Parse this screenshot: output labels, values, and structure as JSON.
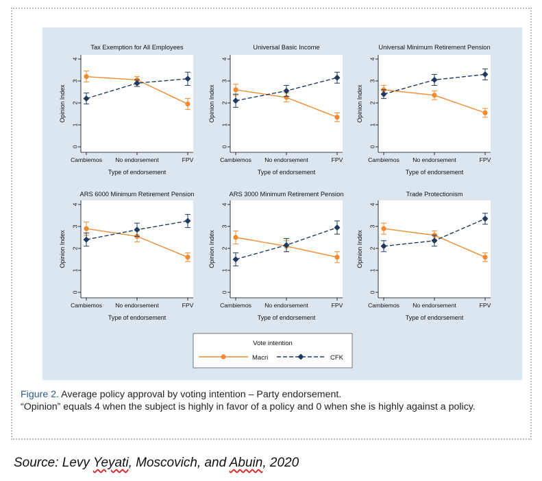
{
  "figure": {
    "caption_label": "Figure 2.",
    "caption_text": "Average policy approval by voting intention – Party endorsement.",
    "caption_note": "“Opinion” equals 4 when the subject is highly in favor of a policy and 0 when she is highly against a policy.",
    "source_prefix": "Source: Levy ",
    "source_author1": "Yeyati",
    "source_mid": ", Moscovich, and ",
    "source_author3": "Abuin",
    "source_suffix": ", 2020"
  },
  "legend": {
    "title": "Vote intention",
    "series": [
      {
        "name": "Macri",
        "color": "#f08a30"
      },
      {
        "name": "CFK",
        "color": "#1f3a5f"
      }
    ]
  },
  "colors": {
    "macri": "#f08a30",
    "cfk": "#1f3a5f",
    "panel_bg": "#dce6ee",
    "plot_bg": "#ffffff"
  },
  "chart_data": [
    {
      "type": "line",
      "title": "Tax Exemption for All Employees",
      "categories": [
        "Cambiemos",
        "No endorsement",
        "FPV"
      ],
      "xlabel": "Type of endorsement",
      "ylabel": "Opinion Index",
      "ylim": [
        0,
        4
      ],
      "yticks": [
        0,
        1,
        2,
        3,
        4
      ],
      "series": [
        {
          "name": "Macri",
          "values": [
            3.2,
            3.05,
            1.95
          ],
          "ci": [
            [
              2.95,
              3.45
            ],
            [
              2.85,
              3.2
            ],
            [
              1.7,
              2.2
            ]
          ]
        },
        {
          "name": "CFK",
          "values": [
            2.2,
            2.9,
            3.1
          ],
          "ci": [
            [
              1.95,
              2.45
            ],
            [
              2.75,
              3.05
            ],
            [
              2.8,
              3.4
            ]
          ]
        }
      ]
    },
    {
      "type": "line",
      "title": "Universal Basic Income",
      "categories": [
        "Cambiemos",
        "No endorsement",
        "FPV"
      ],
      "xlabel": "Type of endorsement",
      "ylabel": "Opinion Index",
      "ylim": [
        0,
        4
      ],
      "yticks": [
        0,
        1,
        2,
        3,
        4
      ],
      "series": [
        {
          "name": "Macri",
          "values": [
            2.6,
            2.25,
            1.35
          ],
          "ci": [
            [
              2.35,
              2.85
            ],
            [
              2.05,
              2.45
            ],
            [
              1.15,
              1.55
            ]
          ]
        },
        {
          "name": "CFK",
          "values": [
            2.1,
            2.55,
            3.15
          ],
          "ci": [
            [
              1.8,
              2.4
            ],
            [
              2.3,
              2.8
            ],
            [
              2.9,
              3.4
            ]
          ]
        }
      ]
    },
    {
      "type": "line",
      "title": "Universal Minimum Retirement Pension",
      "categories": [
        "Cambiemos",
        "No endorsement",
        "FPV"
      ],
      "xlabel": "Type of endorsement",
      "ylabel": "Opinion Index",
      "ylim": [
        0,
        4
      ],
      "yticks": [
        0,
        1,
        2,
        3,
        4
      ],
      "series": [
        {
          "name": "Macri",
          "values": [
            2.6,
            2.35,
            1.55
          ],
          "ci": [
            [
              2.4,
              2.8
            ],
            [
              2.15,
              2.55
            ],
            [
              1.35,
              1.75
            ]
          ]
        },
        {
          "name": "CFK",
          "values": [
            2.4,
            3.05,
            3.3
          ],
          "ci": [
            [
              2.2,
              2.6
            ],
            [
              2.8,
              3.3
            ],
            [
              3.05,
              3.55
            ]
          ]
        }
      ]
    },
    {
      "type": "line",
      "title": "ARS 6000 Minimum Retirement Pension",
      "categories": [
        "Cambiemos",
        "No endorsement",
        "FPV"
      ],
      "xlabel": "Type of endorsement",
      "ylabel": "Opinion Index",
      "ylim": [
        0,
        4
      ],
      "yticks": [
        0,
        1,
        2,
        3,
        4
      ],
      "series": [
        {
          "name": "Macri",
          "values": [
            2.9,
            2.55,
            1.6
          ],
          "ci": [
            [
              2.6,
              3.2
            ],
            [
              2.3,
              2.8
            ],
            [
              1.4,
              1.8
            ]
          ]
        },
        {
          "name": "CFK",
          "values": [
            2.4,
            2.85,
            3.25
          ],
          "ci": [
            [
              2.1,
              2.7
            ],
            [
              2.55,
              3.15
            ],
            [
              2.95,
              3.55
            ]
          ]
        }
      ]
    },
    {
      "type": "line",
      "title": "ARS 3000 Minimum Retirement Pension",
      "categories": [
        "Cambiemos",
        "No endorsement",
        "FPV"
      ],
      "xlabel": "Type of endorsement",
      "ylabel": "Opinion Index",
      "ylim": [
        0,
        4
      ],
      "yticks": [
        0,
        1,
        2,
        3,
        4
      ],
      "series": [
        {
          "name": "Macri",
          "values": [
            2.5,
            2.1,
            1.6
          ],
          "ci": [
            [
              2.2,
              2.8
            ],
            [
              1.85,
              2.35
            ],
            [
              1.35,
              1.85
            ]
          ]
        },
        {
          "name": "CFK",
          "values": [
            1.5,
            2.15,
            2.95
          ],
          "ci": [
            [
              1.2,
              1.8
            ],
            [
              1.85,
              2.45
            ],
            [
              2.65,
              3.25
            ]
          ]
        }
      ]
    },
    {
      "type": "line",
      "title": "Trade Protectionism",
      "categories": [
        "Cambiemos",
        "No endorsement",
        "FPV"
      ],
      "xlabel": "Type of endorsement",
      "ylabel": "Opinion Index",
      "ylim": [
        0,
        4
      ],
      "yticks": [
        0,
        1,
        2,
        3,
        4
      ],
      "series": [
        {
          "name": "Macri",
          "values": [
            2.9,
            2.6,
            1.6
          ],
          "ci": [
            [
              2.65,
              3.15
            ],
            [
              2.4,
              2.8
            ],
            [
              1.4,
              1.8
            ]
          ]
        },
        {
          "name": "CFK",
          "values": [
            2.1,
            2.35,
            3.35
          ],
          "ci": [
            [
              1.85,
              2.35
            ],
            [
              2.1,
              2.6
            ],
            [
              3.1,
              3.6
            ]
          ]
        }
      ]
    }
  ]
}
